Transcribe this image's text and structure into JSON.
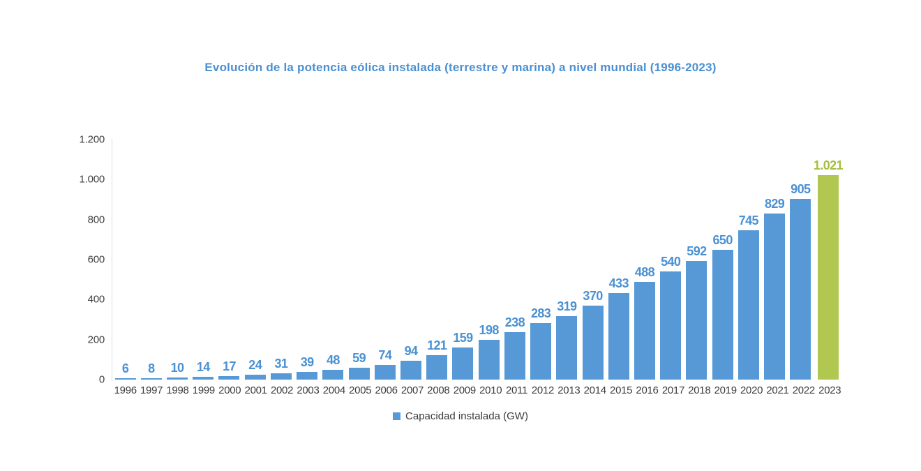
{
  "title": "Evolución de la potencia eólica instalada (terrestre y marina) a nivel mundial (1996-2023)",
  "legend": {
    "label": "Capacidad instalada (GW)"
  },
  "y_axis": {
    "ticks": [
      "1.200",
      "1.000",
      "800",
      "600",
      "400",
      "200",
      "0"
    ]
  },
  "colors": {
    "title": "#4a90d2",
    "bar": "#5699d6",
    "bar_label": "#4a91d3",
    "highlight_bar": "#b0c850",
    "highlight_label": "#a5bf3b",
    "axis_line": "#d8dde3",
    "tick_label": "#3f4040",
    "year_label": "#3c3d3e",
    "legend_text": "#3a3a3a"
  },
  "chart_data": {
    "type": "bar",
    "title": "Evolución de la potencia eólica instalada (terrestre y marina) a nivel mundial (1996-2023)",
    "categories": [
      "1996",
      "1997",
      "1998",
      "1999",
      "2000",
      "2001",
      "2002",
      "2003",
      "2004",
      "2005",
      "2006",
      "2007",
      "2008",
      "2009",
      "2010",
      "2011",
      "2012",
      "2013",
      "2014",
      "2015",
      "2016",
      "2017",
      "2018",
      "2019",
      "2020",
      "2021",
      "2022",
      "2023"
    ],
    "values": [
      6,
      8,
      10,
      14,
      17,
      24,
      31,
      39,
      48,
      59,
      74,
      94,
      121,
      159,
      198,
      238,
      283,
      319,
      370,
      433,
      488,
      540,
      592,
      650,
      745,
      829,
      905,
      1021
    ],
    "value_labels": [
      "6",
      "8",
      "10",
      "14",
      "17",
      "24",
      "31",
      "39",
      "48",
      "59",
      "74",
      "94",
      "121",
      "159",
      "198",
      "238",
      "283",
      "319",
      "370",
      "433",
      "488",
      "540",
      "592",
      "650",
      "745",
      "829",
      "905",
      "1.021"
    ],
    "series_name": "Capacidad instalada (GW)",
    "xlabel": "",
    "ylabel": "",
    "ylim": [
      0,
      1200
    ],
    "y_tick_step": 200,
    "grid": false,
    "legend_position": "bottom",
    "highlight_index": 27,
    "bar_color": "#5699d6",
    "highlight_color": "#b0c850"
  }
}
